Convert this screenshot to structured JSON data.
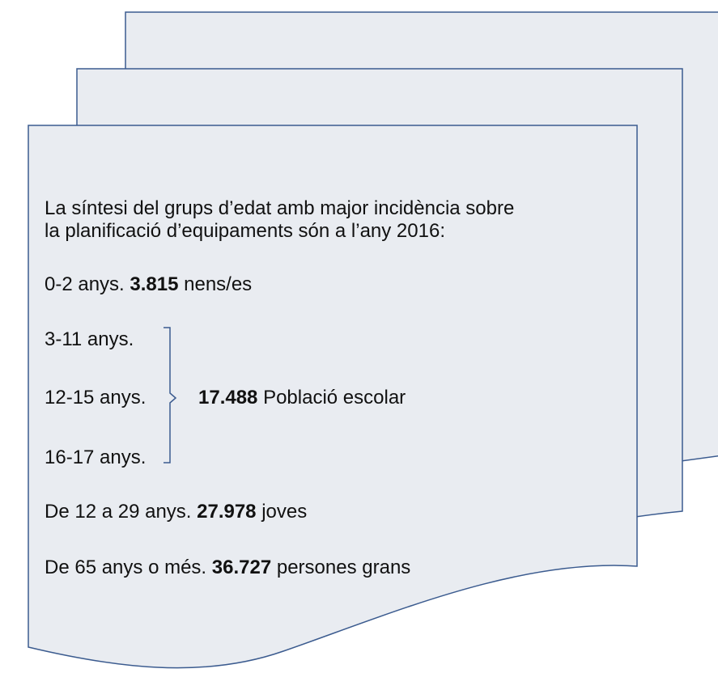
{
  "intro": [
    "La síntesi del grups d’edat amb major incidència sobre",
    "la planificació d’equipaments són a l’any 2016:"
  ],
  "lines": [
    {
      "prefix": "0-2 anys.",
      "number": "3.815",
      "suffix": "nens/es"
    },
    {
      "prefix": "3-11 anys."
    },
    {
      "prefix": "12-15 anys."
    },
    {
      "prefix": "16-17 anys."
    },
    {
      "prefix": "De 12 a 29 anys.",
      "number": "27.978",
      "suffix": "joves"
    },
    {
      "prefix": "De 65 anys o més.",
      "number": "36.727",
      "suffix": "persones grans"
    }
  ],
  "group": {
    "number": "17.488",
    "suffix": "Població escolar"
  }
}
